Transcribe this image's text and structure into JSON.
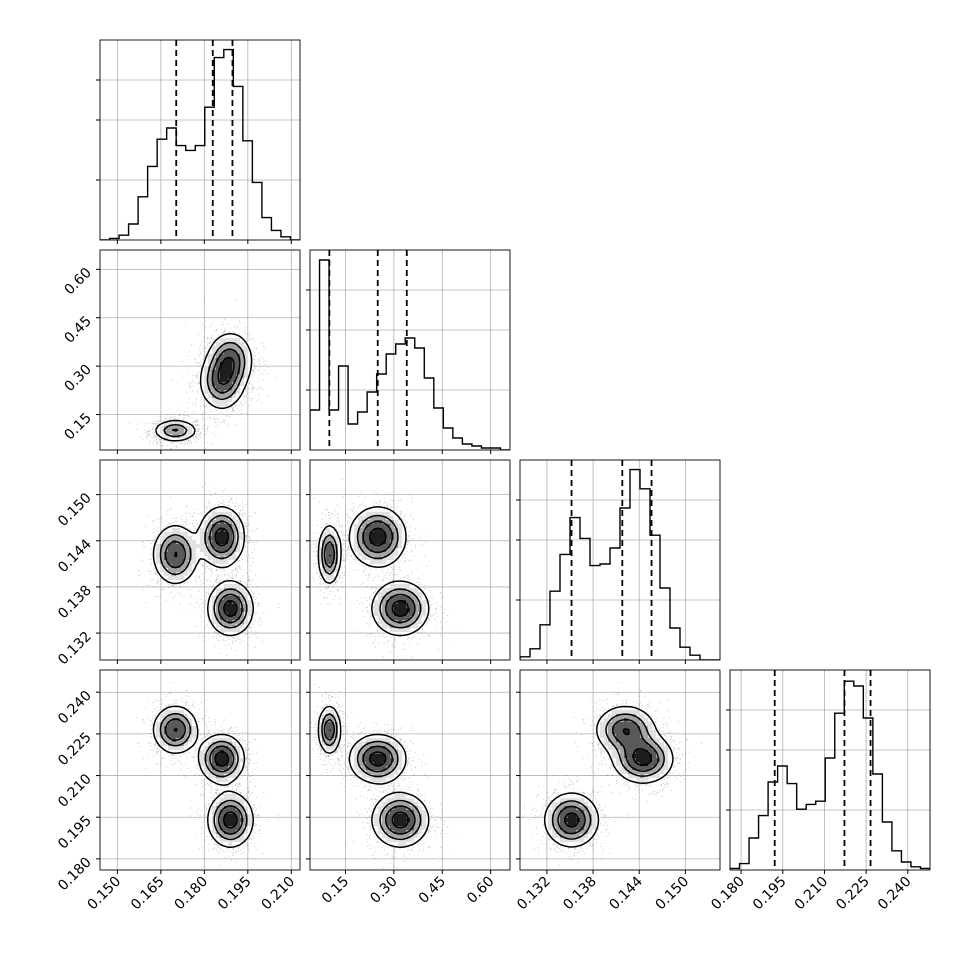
{
  "chart_data": {
    "type": "corner",
    "grid": true,
    "axes": [
      {
        "ticks": [
          0.15,
          0.165,
          0.18,
          0.195,
          0.21
        ],
        "tick_labels": [
          "0.150",
          "0.165",
          "0.180",
          "0.195",
          "0.210"
        ],
        "range": [
          0.144,
          0.213
        ]
      },
      {
        "ticks": [
          0.15,
          0.3,
          0.45,
          0.6
        ],
        "tick_labels": [
          "0.15",
          "0.30",
          "0.45",
          "0.60"
        ],
        "range": [
          0.04,
          0.66
        ]
      },
      {
        "ticks": [
          0.132,
          0.138,
          0.144,
          0.15
        ],
        "tick_labels": [
          "0.132",
          "0.138",
          "0.144",
          "0.150"
        ],
        "range": [
          0.1285,
          0.1545
        ]
      },
      {
        "ticks": [
          0.18,
          0.195,
          0.21,
          0.225,
          0.24
        ],
        "tick_labels": [
          "0.180",
          "0.195",
          "0.210",
          "0.225",
          "0.240"
        ],
        "range": [
          0.176,
          0.248
        ]
      }
    ],
    "histograms": [
      {
        "bin_counts": [
          0,
          1,
          3,
          10,
          27,
          46,
          63,
          70,
          59,
          56,
          59,
          83,
          114,
          119,
          96,
          62,
          36,
          14,
          6,
          2,
          0
        ],
        "max": 125,
        "quantiles": [
          0.1703,
          0.1829,
          0.1897
        ]
      },
      {
        "bin_counts": [
          20,
          95,
          20,
          42,
          13,
          19,
          29,
          38,
          48,
          53,
          56,
          51,
          36,
          21,
          11,
          6,
          3,
          2,
          1,
          1,
          0
        ],
        "max": 100,
        "quantiles": [
          0.1,
          0.25,
          0.34
        ]
      },
      {
        "bin_counts": [
          2,
          7,
          22,
          43,
          66,
          89,
          76,
          59,
          60,
          70,
          95,
          119,
          107,
          78,
          45,
          20,
          8,
          3,
          0,
          0
        ],
        "max": 125,
        "quantiles": [
          0.1352,
          0.1418,
          0.1456
        ]
      },
      {
        "bin_counts": [
          1,
          4,
          20,
          34,
          55,
          65,
          54,
          38,
          41,
          43,
          70,
          98,
          118,
          115,
          95,
          60,
          30,
          12,
          5,
          2,
          1
        ],
        "max": 125,
        "quantiles": [
          0.1921,
          0.2172,
          0.2266
        ]
      }
    ],
    "clusters": [
      {
        "mean": [
          0.17,
          0.1,
          0.1422,
          0.2265
        ],
        "sd": [
          0.004,
          0.018,
          0.002,
          0.0045
        ],
        "weight": 0.3
      },
      {
        "mean": [
          0.186,
          0.25,
          0.1445,
          0.216
        ],
        "sd": [
          0.004,
          0.045,
          0.002,
          0.0045
        ],
        "weight": 0.35
      },
      {
        "mean": [
          0.189,
          0.32,
          0.1352,
          0.194
        ],
        "sd": [
          0.004,
          0.045,
          0.0018,
          0.005
        ],
        "weight": 0.35
      }
    ]
  }
}
